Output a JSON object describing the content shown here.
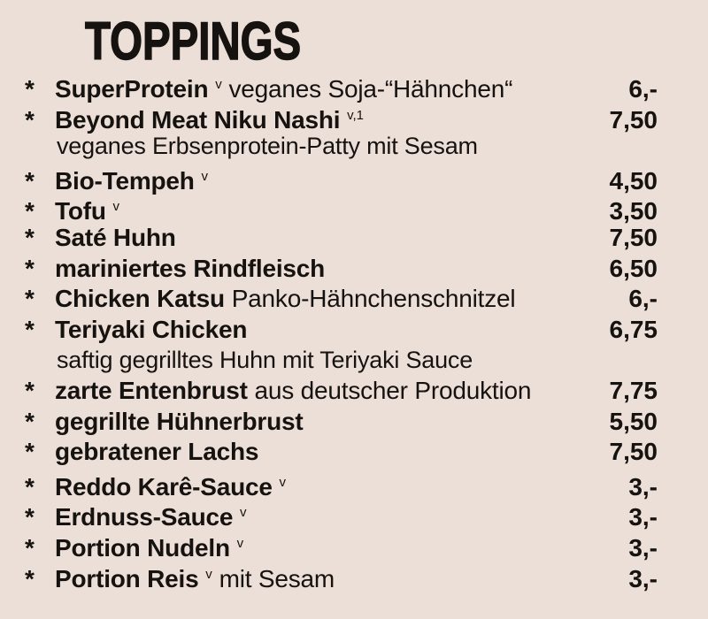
{
  "page": {
    "background_color": "#ecdfd7",
    "text_color": "#161210"
  },
  "menu": {
    "title": "TOPPINGS",
    "bullet": "*",
    "items": [
      {
        "name": "SuperProtein",
        "sup": "v",
        "desc_inline": "veganes Soja-“Hähnchen“",
        "price": "6,-"
      },
      {
        "name": "Beyond Meat Niku Nashi",
        "sup": "v,1",
        "price": "7,50",
        "desc_line": "veganes Erbsenprotein-Patty mit Sesam"
      },
      {
        "name": "Bio-Tempeh",
        "sup": "v",
        "price": "4,50"
      },
      {
        "name": "Tofu",
        "sup": "v",
        "price": "3,50"
      },
      {
        "name": "Saté Huhn",
        "price": "7,50"
      },
      {
        "name": "mariniertes Rindfleisch",
        "price": "6,50"
      },
      {
        "name": "Chicken Katsu",
        "desc_inline": "Panko-Hähnchenschnitzel",
        "price": "6,-"
      },
      {
        "name": "Teriyaki Chicken",
        "price": "6,75",
        "desc_line": "saftig gegrilltes Huhn mit Teriyaki Sauce"
      },
      {
        "name": "zarte Entenbrust",
        "desc_inline": "aus deutscher Produktion",
        "price": "7,75"
      },
      {
        "name": "gegrillte Hühnerbrust",
        "price": "5,50"
      },
      {
        "name": "gebratener Lachs",
        "price": "7,50"
      },
      {
        "name": "Reddo Karê-Sauce",
        "sup": "v",
        "price": "3,-"
      },
      {
        "name": "Erdnuss-Sauce",
        "sup": "v",
        "price": "3,-"
      },
      {
        "name": "Portion Nudeln",
        "sup": "v",
        "price": "3,-"
      },
      {
        "name": "Portion Reis",
        "sup": "v",
        "desc_inline": "mit Sesam",
        "price": "3,-"
      }
    ]
  }
}
